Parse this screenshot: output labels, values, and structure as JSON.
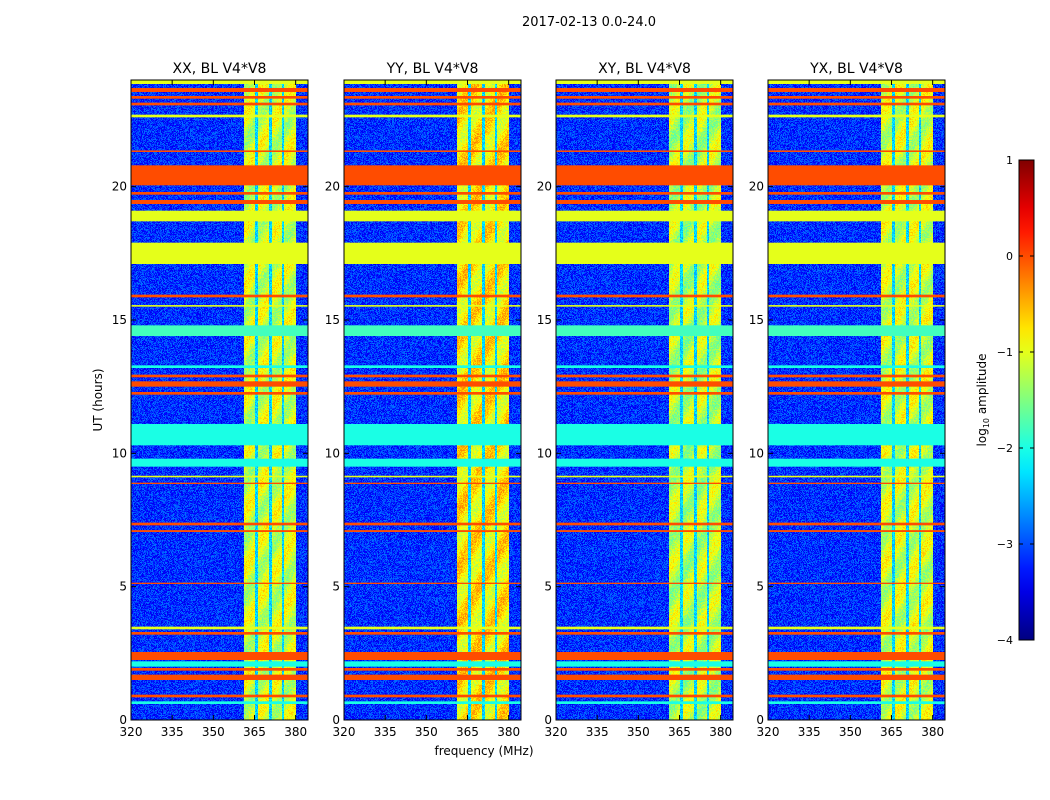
{
  "chart_data": {
    "type": "heatmap",
    "suptitle": "2017-02-13 0.0-24.0",
    "panels": [
      {
        "title": "XX, BL V4*V8",
        "bright_level": -1.1
      },
      {
        "title": "YY, BL V4*V8",
        "bright_level": -0.8
      },
      {
        "title": "XY, BL V4*V8",
        "bright_level": -1.2
      },
      {
        "title": "YX, BL V4*V8",
        "bright_level": -1.1
      }
    ],
    "xlabel": "frequency (MHz)",
    "ylabel": "UT (hours)",
    "xticks": [
      320,
      335,
      350,
      365,
      380
    ],
    "yticks": [
      0,
      5,
      10,
      15,
      20
    ],
    "xlim": [
      320,
      384.5
    ],
    "ylim": [
      0,
      24
    ],
    "background_level": -3.2,
    "bright_freq_range": [
      361,
      380
    ],
    "freq_gaps": [
      [
        365.3,
        366.3
      ],
      [
        370.3,
        371.2
      ],
      [
        375.0,
        375.9
      ]
    ],
    "time_bands": [
      {
        "start": 23.85,
        "end": 24.0,
        "value": -1.0
      },
      {
        "start": 23.55,
        "end": 23.7,
        "value": 0.0
      },
      {
        "start": 23.3,
        "end": 23.4,
        "value": 0.0
      },
      {
        "start": 23.05,
        "end": 23.15,
        "value": 0.0
      },
      {
        "start": 22.6,
        "end": 22.7,
        "value": -1.0
      },
      {
        "start": 21.3,
        "end": 21.36,
        "value": 0.0
      },
      {
        "start": 20.05,
        "end": 20.8,
        "value": 0.0
      },
      {
        "start": 19.7,
        "end": 19.8,
        "value": 0.0
      },
      {
        "start": 19.35,
        "end": 19.5,
        "value": 0.0
      },
      {
        "start": 18.7,
        "end": 19.1,
        "value": -1.0
      },
      {
        "start": 17.1,
        "end": 17.9,
        "value": -1.0
      },
      {
        "start": 15.85,
        "end": 15.95,
        "value": 0.0
      },
      {
        "start": 15.5,
        "end": 15.56,
        "value": -1.0
      },
      {
        "start": 14.4,
        "end": 14.8,
        "value": -1.8
      },
      {
        "start": 13.2,
        "end": 13.3,
        "value": -2.0
      },
      {
        "start": 12.85,
        "end": 12.95,
        "value": 0.0
      },
      {
        "start": 12.5,
        "end": 12.7,
        "value": 0.0
      },
      {
        "start": 12.2,
        "end": 12.3,
        "value": 0.0
      },
      {
        "start": 10.3,
        "end": 11.1,
        "value": -2.0
      },
      {
        "start": 9.5,
        "end": 9.8,
        "value": -2.0
      },
      {
        "start": 9.1,
        "end": 9.16,
        "value": -1.0
      },
      {
        "start": 8.85,
        "end": 8.9,
        "value": 0.0
      },
      {
        "start": 7.3,
        "end": 7.4,
        "value": 0.0
      },
      {
        "start": 7.05,
        "end": 7.12,
        "value": 0.0
      },
      {
        "start": 5.1,
        "end": 5.15,
        "value": 0.0
      },
      {
        "start": 3.4,
        "end": 3.5,
        "value": -1.0
      },
      {
        "start": 3.2,
        "end": 3.3,
        "value": 0.0
      },
      {
        "start": 2.25,
        "end": 2.55,
        "value": 0.0
      },
      {
        "start": 2.0,
        "end": 2.2,
        "value": -2.0
      },
      {
        "start": 1.85,
        "end": 1.95,
        "value": 0.0
      },
      {
        "start": 1.5,
        "end": 1.7,
        "value": 0.0
      },
      {
        "start": 0.85,
        "end": 0.95,
        "value": 0.0
      },
      {
        "start": 0.6,
        "end": 0.7,
        "value": -2.0
      }
    ],
    "colorbar": {
      "label": "log10 amplitude",
      "label_main": "log",
      "label_sub": "10",
      "label_rest": " amplitude",
      "range": [
        -4,
        1
      ],
      "ticks": [
        -4,
        -3,
        -2,
        -1,
        0,
        1
      ],
      "tick_labels": [
        "−4",
        "−3",
        "−2",
        "−1",
        "0",
        "1"
      ],
      "colormap": "jet"
    }
  }
}
